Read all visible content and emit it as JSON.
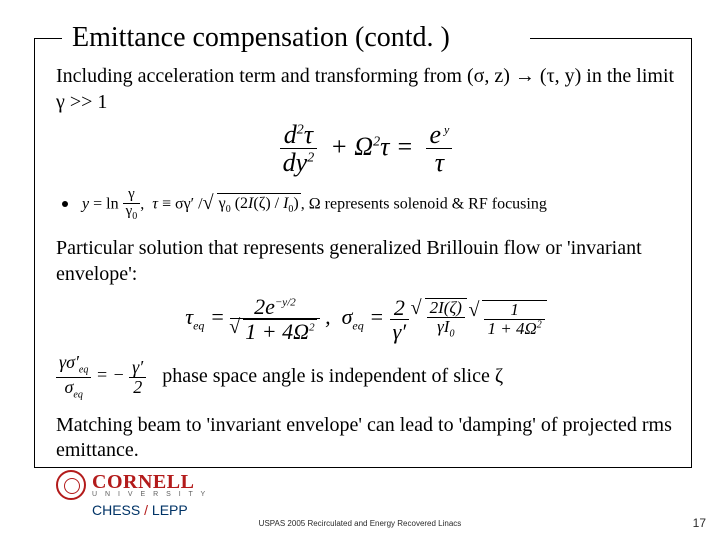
{
  "title": "Emittance compensation (contd. )",
  "para1": "Including acceleration term and transforming from (σ, z) → (τ, y) in the limit γ >> 1",
  "defs_text": ", Ω represents solenoid & RF focusing",
  "para2": "Particular solution that represents generalized Brillouin flow or 'invariant envelope':",
  "phase_text": "phase space angle is independent of slice ζ",
  "para3": "Matching beam to 'invariant envelope' can lead to 'damping' of projected rms emittance.",
  "logo": {
    "name": "CORNELL",
    "sub": "U N I V E R S I T Y",
    "lab": "CHESS / LEPP"
  },
  "footer": "USPAS 2005 Recirculated and Energy Recovered Linacs",
  "page": "17",
  "colors": {
    "cornell_red": "#b31b1b",
    "text": "#000000",
    "footer_gray": "#2a2a2a",
    "navy": "#003366"
  },
  "eq_main": {
    "lhs_num": "d²τ",
    "lhs_den": "dy²",
    "term2": "+ Ω²τ =",
    "rhs_num": "e ʸ",
    "rhs_den": "τ"
  },
  "defs_eq": "y = ln (γ / γ₀), τ ≡ σγ′ / √(γ₀ (2I(ζ) / I₀))",
  "eq2": {
    "tau_lhs": "τ_eq =",
    "tau_num": "2e⁻ʸ/²",
    "tau_den": "√(1 + 4Ω²)",
    "sep": ",  σ_eq =",
    "sig_rhs1": "2 / γ′",
    "sig_rhs2": "√(2I(ζ) / γI₀)",
    "sig_rhs3": "1 / (1 + 4Ω²)"
  },
  "phase_eq": "γσ′_eq / σ_eq = − γ′ / 2"
}
